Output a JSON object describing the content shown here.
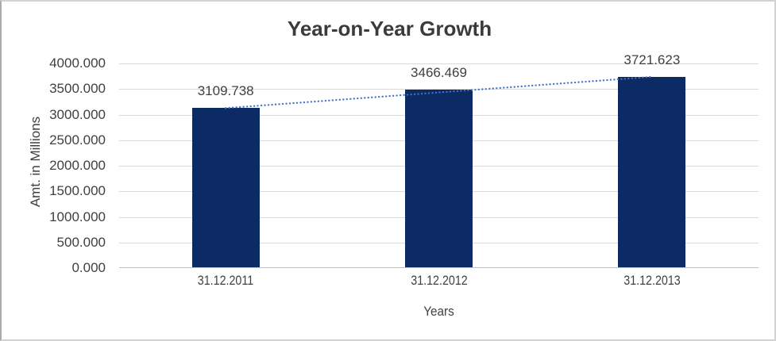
{
  "window": {
    "background": "#ffffff",
    "border_color": "#d2d2d2"
  },
  "chart_data": {
    "type": "bar",
    "title": "Year-on-Year Growth",
    "xlabel": "Years",
    "ylabel": "Amt. in Millions",
    "categories": [
      "31.12.2011",
      "31.12.2012",
      "31.12.2013"
    ],
    "values": [
      3109.738,
      3466.469,
      3721.623
    ],
    "data_labels": [
      "3109.738",
      "3466.469",
      "3721.623"
    ],
    "ylim": [
      0,
      4000
    ],
    "ytick_step": 500,
    "ytick_labels": [
      "4000.000",
      "3500.000",
      "3000.000",
      "2500.000",
      "2000.000",
      "1500.000",
      "1000.000",
      "500.000",
      "0.000"
    ],
    "grid": true,
    "legend": "none",
    "trendline": {
      "type": "linear",
      "style": "dotted"
    },
    "colors": {
      "bar": "#0c2a63",
      "trendline": "#4472c4",
      "gridline": "#d9d9d9",
      "axis_line": "#bfbfbf",
      "label_text": "#404040",
      "title_text": "#3b3b3b"
    }
  }
}
